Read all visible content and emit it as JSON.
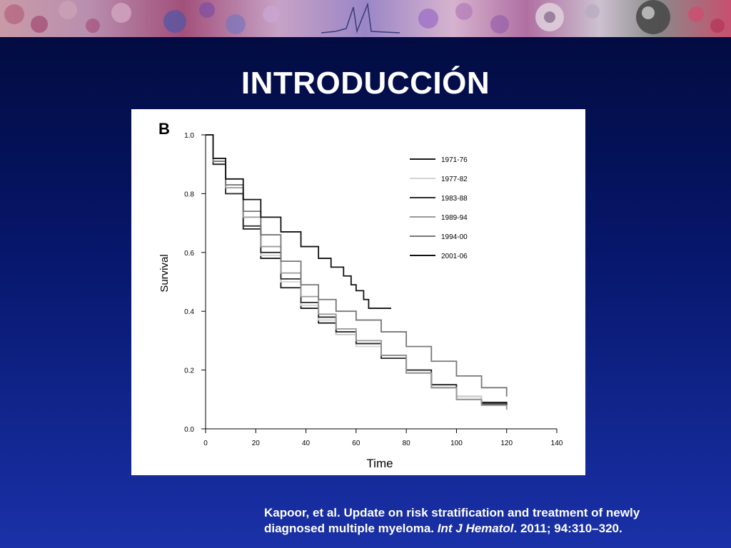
{
  "slide": {
    "title": "INTRODUCCIÓN"
  },
  "citation": {
    "line1": "Kapoor, et al. Update on risk stratification and treatment of newly",
    "line2_start": "diagnosed multiple myeloma. ",
    "journal": "Int J Hematol",
    "line2_end": ". 2011; 94:310–320."
  },
  "colors": {
    "background": "#06166a",
    "text": "#ffffff",
    "panel": "#ffffff"
  },
  "chart_data": {
    "type": "line",
    "panel_label": "B",
    "xlabel": "Time",
    "ylabel": "Survival",
    "xlim": [
      0,
      140
    ],
    "ylim": [
      0,
      1.0
    ],
    "x_ticks": [
      "0",
      "20",
      "40",
      "60",
      "80",
      "100",
      "120",
      "140"
    ],
    "y_ticks": [
      "0.0",
      "0.2",
      "0.4",
      "0.6",
      "0.8",
      "1.0"
    ],
    "grid": false,
    "legend_position": "top-right",
    "series": [
      {
        "name": "1971-76",
        "color": "#1a1a1a",
        "points": [
          [
            0,
            1.0
          ],
          [
            3,
            0.9
          ],
          [
            8,
            0.8
          ],
          [
            15,
            0.68
          ],
          [
            22,
            0.58
          ],
          [
            30,
            0.48
          ],
          [
            38,
            0.41
          ],
          [
            45,
            0.36
          ],
          [
            52,
            0.32
          ],
          [
            60,
            0.29
          ],
          [
            70,
            0.25
          ],
          [
            80,
            0.2
          ],
          [
            90,
            0.15
          ],
          [
            100,
            0.11
          ],
          [
            110,
            0.09
          ],
          [
            120,
            0.08
          ]
        ]
      },
      {
        "name": "1977-82",
        "color": "#d4d4d4",
        "points": [
          [
            0,
            1.0
          ],
          [
            3,
            0.9
          ],
          [
            8,
            0.8
          ],
          [
            15,
            0.69
          ],
          [
            22,
            0.59
          ],
          [
            30,
            0.5
          ],
          [
            38,
            0.42
          ],
          [
            45,
            0.37
          ],
          [
            52,
            0.32
          ],
          [
            60,
            0.28
          ],
          [
            70,
            0.24
          ],
          [
            80,
            0.19
          ],
          [
            90,
            0.14
          ],
          [
            100,
            0.11
          ],
          [
            110,
            0.08
          ],
          [
            120,
            0.065
          ]
        ]
      },
      {
        "name": "1983-88",
        "color": "#2a2a2a",
        "points": [
          [
            0,
            1.0
          ],
          [
            3,
            0.9
          ],
          [
            8,
            0.8
          ],
          [
            15,
            0.69
          ],
          [
            22,
            0.6
          ],
          [
            30,
            0.51
          ],
          [
            38,
            0.43
          ],
          [
            45,
            0.38
          ],
          [
            52,
            0.33
          ],
          [
            60,
            0.29
          ],
          [
            70,
            0.24
          ],
          [
            80,
            0.19
          ],
          [
            90,
            0.14
          ],
          [
            100,
            0.1
          ],
          [
            110,
            0.085
          ],
          [
            120,
            0.075
          ]
        ]
      },
      {
        "name": "1989-94",
        "color": "#9a9a9a",
        "points": [
          [
            0,
            1.0
          ],
          [
            3,
            0.91
          ],
          [
            8,
            0.82
          ],
          [
            15,
            0.72
          ],
          [
            22,
            0.62
          ],
          [
            30,
            0.53
          ],
          [
            38,
            0.45
          ],
          [
            45,
            0.39
          ],
          [
            52,
            0.34
          ],
          [
            60,
            0.3
          ],
          [
            70,
            0.25
          ],
          [
            80,
            0.19
          ],
          [
            90,
            0.14
          ],
          [
            100,
            0.1
          ],
          [
            110,
            0.08
          ],
          [
            120,
            0.065
          ]
        ]
      },
      {
        "name": "1994-00",
        "color": "#777777",
        "points": [
          [
            0,
            1.0
          ],
          [
            3,
            0.91
          ],
          [
            8,
            0.83
          ],
          [
            15,
            0.74
          ],
          [
            22,
            0.66
          ],
          [
            30,
            0.57
          ],
          [
            38,
            0.49
          ],
          [
            45,
            0.44
          ],
          [
            52,
            0.4
          ],
          [
            60,
            0.37
          ],
          [
            70,
            0.33
          ],
          [
            80,
            0.28
          ],
          [
            90,
            0.23
          ],
          [
            100,
            0.18
          ],
          [
            110,
            0.14
          ],
          [
            120,
            0.11
          ]
        ]
      },
      {
        "name": "2001-06",
        "color": "#111111",
        "points": [
          [
            0,
            1.0
          ],
          [
            3,
            0.92
          ],
          [
            8,
            0.85
          ],
          [
            15,
            0.78
          ],
          [
            22,
            0.72
          ],
          [
            30,
            0.67
          ],
          [
            38,
            0.62
          ],
          [
            45,
            0.58
          ],
          [
            50,
            0.55
          ],
          [
            55,
            0.52
          ],
          [
            58,
            0.49
          ],
          [
            60,
            0.47
          ],
          [
            63,
            0.44
          ],
          [
            65,
            0.41
          ],
          [
            74,
            0.41
          ]
        ]
      }
    ]
  }
}
